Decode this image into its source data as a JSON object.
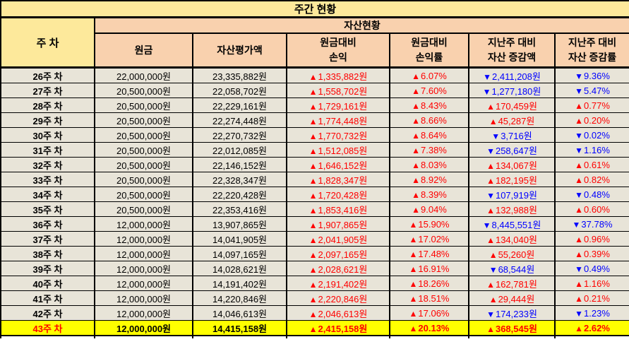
{
  "title": "주간 현황",
  "group_header": "자산현황",
  "columns": {
    "week": "주 차",
    "principal": "원금",
    "valuation": "자산평가액",
    "profit_loss": [
      "원금대비",
      "손익"
    ],
    "profit_loss_rate": [
      "원금대비",
      "손익률"
    ],
    "change_amount": [
      "지난주 대비",
      "자산 증감액"
    ],
    "change_rate": [
      "지난주 대비",
      "자산 증감률"
    ]
  },
  "icons": {
    "up": "▲",
    "down": "▼"
  },
  "colors": {
    "up": "#ff0000",
    "down": "#0000ff",
    "highlight_bg": "#ffff00",
    "title_bg": "#fde99b",
    "group_bg": "#f9d1ae",
    "row_bg": "#e8e4d8",
    "border": "#000000"
  },
  "rows": [
    {
      "week": "26주 차",
      "principal": "22,000,000원",
      "valuation": "23,335,882원",
      "pl_dir": "up",
      "pl": "1,335,882원",
      "plr_dir": "up",
      "plr": "6.07%",
      "chg_dir": "down",
      "chg": "2,411,208원",
      "chgr_dir": "down",
      "chgr": "9.36%",
      "highlight": false
    },
    {
      "week": "27주 차",
      "principal": "20,500,000원",
      "valuation": "22,058,702원",
      "pl_dir": "up",
      "pl": "1,558,702원",
      "plr_dir": "up",
      "plr": "7.60%",
      "chg_dir": "down",
      "chg": "1,277,180원",
      "chgr_dir": "down",
      "chgr": "5.47%",
      "highlight": false
    },
    {
      "week": "28주 차",
      "principal": "20,500,000원",
      "valuation": "22,229,161원",
      "pl_dir": "up",
      "pl": "1,729,161원",
      "plr_dir": "up",
      "plr": "8.43%",
      "chg_dir": "up",
      "chg": "170,459원",
      "chgr_dir": "up",
      "chgr": "0.77%",
      "highlight": false
    },
    {
      "week": "29주 차",
      "principal": "20,500,000원",
      "valuation": "22,274,448원",
      "pl_dir": "up",
      "pl": "1,774,448원",
      "plr_dir": "up",
      "plr": "8.66%",
      "chg_dir": "up",
      "chg": "45,287원",
      "chgr_dir": "up",
      "chgr": "0.20%",
      "highlight": false
    },
    {
      "week": "30주 차",
      "principal": "20,500,000원",
      "valuation": "22,270,732원",
      "pl_dir": "up",
      "pl": "1,770,732원",
      "plr_dir": "up",
      "plr": "8.64%",
      "chg_dir": "down",
      "chg": "3,716원",
      "chgr_dir": "down",
      "chgr": "0.02%",
      "highlight": false
    },
    {
      "week": "31주 차",
      "principal": "20,500,000원",
      "valuation": "22,012,085원",
      "pl_dir": "up",
      "pl": "1,512,085원",
      "plr_dir": "up",
      "plr": "7.38%",
      "chg_dir": "down",
      "chg": "258,647원",
      "chgr_dir": "down",
      "chgr": "1.16%",
      "highlight": false
    },
    {
      "week": "32주 차",
      "principal": "20,500,000원",
      "valuation": "22,146,152원",
      "pl_dir": "up",
      "pl": "1,646,152원",
      "plr_dir": "up",
      "plr": "8.03%",
      "chg_dir": "up",
      "chg": "134,067원",
      "chgr_dir": "up",
      "chgr": "0.61%",
      "highlight": false
    },
    {
      "week": "33주 차",
      "principal": "20,500,000원",
      "valuation": "22,328,347원",
      "pl_dir": "up",
      "pl": "1,828,347원",
      "plr_dir": "up",
      "plr": "8.92%",
      "chg_dir": "up",
      "chg": "182,195원",
      "chgr_dir": "up",
      "chgr": "0.82%",
      "highlight": false
    },
    {
      "week": "34주 차",
      "principal": "20,500,000원",
      "valuation": "22,220,428원",
      "pl_dir": "up",
      "pl": "1,720,428원",
      "plr_dir": "up",
      "plr": "8.39%",
      "chg_dir": "down",
      "chg": "107,919원",
      "chgr_dir": "down",
      "chgr": "0.48%",
      "highlight": false
    },
    {
      "week": "35주 차",
      "principal": "20,500,000원",
      "valuation": "22,353,416원",
      "pl_dir": "up",
      "pl": "1,853,416원",
      "plr_dir": "up",
      "plr": "9.04%",
      "chg_dir": "up",
      "chg": "132,988원",
      "chgr_dir": "up",
      "chgr": "0.60%",
      "highlight": false
    },
    {
      "week": "36주 차",
      "principal": "12,000,000원",
      "valuation": "13,907,865원",
      "pl_dir": "up",
      "pl": "1,907,865원",
      "plr_dir": "up",
      "plr": "15.90%",
      "chg_dir": "down",
      "chg": "8,445,551원",
      "chgr_dir": "down",
      "chgr": "37.78%",
      "highlight": false
    },
    {
      "week": "37주 차",
      "principal": "12,000,000원",
      "valuation": "14,041,905원",
      "pl_dir": "up",
      "pl": "2,041,905원",
      "plr_dir": "up",
      "plr": "17.02%",
      "chg_dir": "up",
      "chg": "134,040원",
      "chgr_dir": "up",
      "chgr": "0.96%",
      "highlight": false
    },
    {
      "week": "38주 차",
      "principal": "12,000,000원",
      "valuation": "14,097,165원",
      "pl_dir": "up",
      "pl": "2,097,165원",
      "plr_dir": "up",
      "plr": "17.48%",
      "chg_dir": "up",
      "chg": "55,260원",
      "chgr_dir": "up",
      "chgr": "0.39%",
      "highlight": false
    },
    {
      "week": "39주 차",
      "principal": "12,000,000원",
      "valuation": "14,028,621원",
      "pl_dir": "up",
      "pl": "2,028,621원",
      "plr_dir": "up",
      "plr": "16.91%",
      "chg_dir": "down",
      "chg": "68,544원",
      "chgr_dir": "down",
      "chgr": "0.49%",
      "highlight": false
    },
    {
      "week": "40주 차",
      "principal": "12,000,000원",
      "valuation": "14,191,402원",
      "pl_dir": "up",
      "pl": "2,191,402원",
      "plr_dir": "up",
      "plr": "18.26%",
      "chg_dir": "up",
      "chg": "162,781원",
      "chgr_dir": "up",
      "chgr": "1.16%",
      "highlight": false
    },
    {
      "week": "41주 차",
      "principal": "12,000,000원",
      "valuation": "14,220,846원",
      "pl_dir": "up",
      "pl": "2,220,846원",
      "plr_dir": "up",
      "plr": "18.51%",
      "chg_dir": "up",
      "chg": "29,444원",
      "chgr_dir": "up",
      "chgr": "0.21%",
      "highlight": false
    },
    {
      "week": "42주 차",
      "principal": "12,000,000원",
      "valuation": "14,046,613원",
      "pl_dir": "up",
      "pl": "2,046,613원",
      "plr_dir": "up",
      "plr": "17.06%",
      "chg_dir": "down",
      "chg": "174,233원",
      "chgr_dir": "down",
      "chgr": "1.23%",
      "highlight": false
    },
    {
      "week": "43주 차",
      "principal": "12,000,000원",
      "valuation": "14,415,158원",
      "pl_dir": "up",
      "pl": "2,415,158원",
      "plr_dir": "up",
      "plr": "20.13%",
      "chg_dir": "up",
      "chg": "368,545원",
      "chgr_dir": "up",
      "chgr": "2.62%",
      "highlight": true
    }
  ]
}
